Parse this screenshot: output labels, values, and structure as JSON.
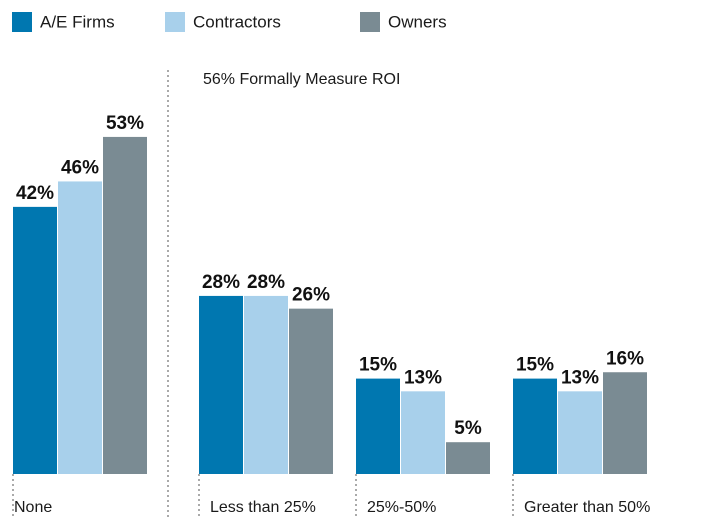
{
  "chart_data": {
    "type": "bar",
    "annotation": "56% Formally Measure ROI",
    "categories": [
      "None",
      "Less than 25%",
      "25%-50%",
      "Greater than 50%"
    ],
    "series": [
      {
        "name": "A/E Firms",
        "color": "#0077b0",
        "values": [
          42,
          28,
          15,
          15
        ],
        "value_labels": [
          "42%",
          "28%",
          "15%",
          "15%"
        ]
      },
      {
        "name": "Contractors",
        "color": "#a8d0eb",
        "values": [
          46,
          28,
          13,
          13
        ],
        "value_labels": [
          "46%",
          "28%",
          "13%",
          "13%"
        ]
      },
      {
        "name": "Owners",
        "color": "#7a8b93",
        "values": [
          53,
          26,
          5,
          16
        ],
        "value_labels": [
          "53%",
          "26%",
          "5%",
          "16%"
        ]
      }
    ]
  }
}
